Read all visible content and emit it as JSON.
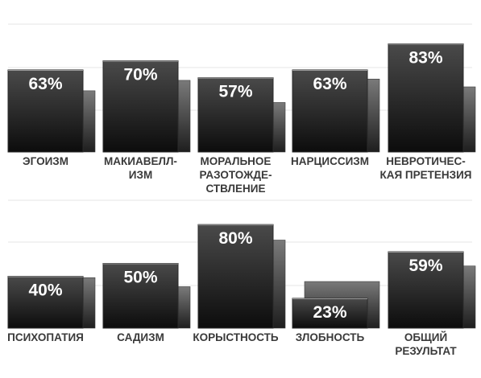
{
  "colors": {
    "background": "#ffffff",
    "gridline": "#e4e4e4",
    "main_bar_top": "#4a4a4a",
    "main_bar_bottom": "#0c0c0c",
    "shadow_bar_top": "#7a7a7a",
    "shadow_bar_bottom": "#1e1e1e",
    "label_text": "#3a3a3a",
    "value_text": "#ffffff"
  },
  "chart_data": [
    {
      "type": "bar",
      "grid": true,
      "categories": [
        [
          "ЭГОИЗМ"
        ],
        [
          "МАКИАВЕЛЛ-",
          "ИЗМ"
        ],
        [
          "МОРАЛЬНОЕ",
          "РАЗОТОЖДЕ-",
          "СТВЛЕНИЕ"
        ],
        [
          "НАРЦИССИЗМ"
        ],
        [
          "НЕВРОТИЧЕС-",
          "КАЯ ПРЕТЕНЗИЯ"
        ]
      ],
      "values": [
        63,
        70,
        57,
        63,
        83
      ],
      "value_labels": [
        "63%",
        "70%",
        "57%",
        "63%",
        "83%"
      ],
      "secondary_values": [
        47,
        55,
        38,
        56,
        50
      ]
    },
    {
      "type": "bar",
      "grid": true,
      "categories": [
        [
          "ПСИХОПАТИЯ"
        ],
        [
          "САДИЗМ"
        ],
        [
          "КОРЫСТНОСТЬ"
        ],
        [
          "ЗЛОБНОСТЬ"
        ],
        [
          "ОБЩИЙ",
          "РЕЗУЛЬТАТ"
        ]
      ],
      "values": [
        40,
        50,
        80,
        23,
        59
      ],
      "value_labels": [
        "40%",
        "50%",
        "80%",
        "23%",
        "59%"
      ],
      "secondary_values": [
        39,
        32,
        68,
        36,
        48
      ]
    }
  ]
}
